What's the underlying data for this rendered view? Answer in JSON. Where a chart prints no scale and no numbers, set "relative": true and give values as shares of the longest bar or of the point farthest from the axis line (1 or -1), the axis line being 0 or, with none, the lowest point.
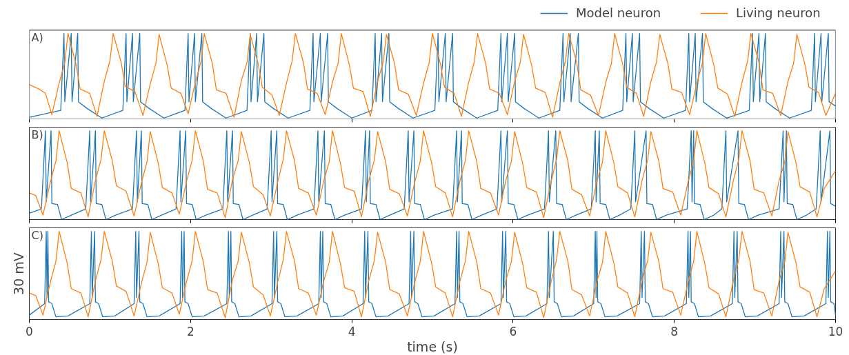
{
  "chart_data": [
    {
      "type": "line",
      "title": "A)",
      "relative": true,
      "xlim": [
        0,
        10
      ],
      "xticks": [
        0,
        2,
        4,
        6,
        8,
        10
      ],
      "tick_labels": false,
      "legend": "top right",
      "series": [
        {
          "name": "Model neuron",
          "color": "#1f77b4",
          "x": [
            0,
            0.39,
            0.43,
            0.44,
            0.52,
            0.53,
            0.6,
            0.61,
            0.72,
            0.9,
            1.16,
            1.2,
            1.21,
            1.28,
            1.29,
            1.37,
            1.38,
            1.49,
            1.67,
            1.93,
            1.97,
            1.98,
            2.05,
            2.06,
            2.14,
            2.15,
            2.26,
            2.44,
            2.7,
            2.74,
            2.75,
            2.82,
            2.83,
            2.91,
            2.92,
            3.03,
            3.21,
            3.48,
            3.52,
            3.53,
            3.61,
            3.62,
            3.7,
            3.71,
            3.82,
            4.0,
            4.25,
            4.29,
            4.3,
            4.37,
            4.38,
            4.46,
            4.47,
            4.58,
            4.76,
            5.03,
            5.07,
            5.08,
            5.16,
            5.17,
            5.25,
            5.26,
            5.37,
            5.55,
            5.81,
            5.85,
            5.86,
            5.93,
            5.94,
            6.02,
            6.03,
            6.14,
            6.32,
            6.58,
            6.62,
            6.63,
            6.71,
            6.72,
            6.81,
            6.82,
            6.93,
            7.11,
            7.36,
            7.4,
            7.41,
            7.48,
            7.49,
            7.57,
            7.58,
            7.69,
            7.87,
            8.14,
            8.18,
            8.19,
            8.26,
            8.27,
            8.35,
            8.36,
            8.47,
            8.65,
            8.93,
            8.97,
            8.98,
            9.05,
            9.06,
            9.13,
            9.14,
            9.25,
            9.43,
            9.7,
            9.74,
            9.75,
            9.82,
            9.83,
            9.91,
            9.92,
            10.0
          ],
          "values": [
            0.02,
            0.1,
            1,
            0.2,
            1,
            0.2,
            1,
            0.2,
            0.12,
            0.01,
            0.1,
            1,
            0.2,
            1,
            0.2,
            1,
            0.2,
            0.12,
            0.01,
            0.1,
            1,
            0.2,
            1,
            0.2,
            1,
            0.2,
            0.12,
            0.01,
            0.1,
            1,
            0.2,
            1,
            0.2,
            1,
            0.2,
            0.12,
            0.01,
            0.1,
            1,
            0.2,
            1,
            0.2,
            1,
            0.2,
            0.12,
            0.01,
            0.1,
            1,
            0.2,
            1,
            0.2,
            1,
            0.2,
            0.12,
            0.01,
            0.1,
            1,
            0.2,
            1,
            0.2,
            1,
            0.2,
            0.12,
            0.01,
            0.1,
            1,
            0.2,
            1,
            0.2,
            1,
            0.2,
            0.12,
            0.01,
            0.1,
            1,
            0.2,
            1,
            0.2,
            1,
            0.2,
            0.12,
            0.01,
            0.1,
            1,
            0.2,
            1,
            0.2,
            1,
            0.2,
            0.12,
            0.01,
            0.1,
            1,
            0.2,
            1,
            0.2,
            1,
            0.2,
            0.12,
            0.01,
            0.1,
            1,
            0.2,
            1,
            0.2,
            1,
            0.2,
            0.12,
            0.01,
            0.1,
            1,
            0.2,
            1,
            0.2,
            1,
            0.2,
            0.15
          ]
        },
        {
          "name": "Living neuron",
          "color": "#ff7f0e",
          "x": [
            0,
            0.12,
            0.2,
            0.28,
            0.37,
            0.44,
            0.48,
            0.58,
            0.63,
            0.75,
            0.84,
            0.93,
            1.0,
            1.04,
            1.14,
            1.19,
            1.31,
            1.41,
            1.5,
            1.57,
            1.61,
            1.71,
            1.76,
            1.88,
            1.97,
            2.06,
            2.13,
            2.17,
            2.27,
            2.32,
            2.44,
            2.54,
            2.63,
            2.7,
            2.74,
            2.84,
            2.89,
            3.01,
            3.1,
            3.19,
            3.26,
            3.3,
            3.4,
            3.45,
            3.57,
            3.67,
            3.76,
            3.83,
            3.87,
            3.97,
            4.02,
            4.14,
            4.23,
            4.32,
            4.39,
            4.43,
            4.53,
            4.58,
            4.7,
            4.8,
            4.89,
            4.96,
            5.0,
            5.1,
            5.15,
            5.27,
            5.36,
            5.45,
            5.52,
            5.56,
            5.66,
            5.71,
            5.83,
            5.93,
            6.02,
            6.09,
            6.13,
            6.23,
            6.28,
            6.4,
            6.49,
            6.58,
            6.65,
            6.69,
            6.79,
            6.84,
            6.96,
            7.06,
            7.15,
            7.22,
            7.26,
            7.36,
            7.41,
            7.53,
            7.62,
            7.71,
            7.78,
            7.82,
            7.92,
            7.97,
            8.09,
            8.19,
            8.28,
            8.35,
            8.39,
            8.49,
            8.54,
            8.66,
            8.75,
            8.84,
            8.91,
            8.95,
            9.05,
            9.1,
            9.22,
            9.32,
            9.41,
            9.48,
            9.52,
            9.62,
            9.67,
            9.79,
            9.88,
            10.0
          ],
          "values": [
            0.4,
            0.35,
            0.3,
            0.05,
            0.42,
            0.66,
            1,
            0.64,
            0.35,
            0.3,
            0.03,
            0.44,
            0.68,
            1,
            0.66,
            0.38,
            0.32,
            0.04,
            0.41,
            0.65,
            0.99,
            0.63,
            0.36,
            0.3,
            0.06,
            0.43,
            0.67,
            1,
            0.65,
            0.34,
            0.3,
            0.02,
            0.45,
            0.66,
            0.99,
            0.64,
            0.37,
            0.28,
            0.04,
            0.42,
            0.68,
            1,
            0.66,
            0.35,
            0.3,
            0.05,
            0.43,
            0.65,
            1,
            0.63,
            0.36,
            0.32,
            0.03,
            0.44,
            0.67,
            0.99,
            0.65,
            0.34,
            0.29,
            0.04,
            0.42,
            0.66,
            1,
            0.64,
            0.37,
            0.3,
            0.03,
            0.43,
            0.67,
            1,
            0.65,
            0.35,
            0.3,
            0.05,
            0.44,
            0.66,
            0.99,
            0.63,
            0.36,
            0.31,
            0.02,
            0.42,
            0.68,
            1,
            0.66,
            0.34,
            0.28,
            0.04,
            0.43,
            0.65,
            1,
            0.64,
            0.37,
            0.3,
            0.03,
            0.44,
            0.67,
            0.99,
            0.65,
            0.35,
            0.31,
            0.05,
            0.42,
            0.66,
            1,
            0.63,
            0.36,
            0.29,
            0.03,
            0.43,
            0.68,
            1,
            0.66,
            0.34,
            0.3,
            0.04,
            0.44,
            0.65,
            0.99,
            0.64,
            0.37,
            0.31,
            0.04,
            0.3
          ]
        }
      ]
    },
    {
      "type": "line",
      "title": "B)",
      "relative": true,
      "xlim": [
        0,
        10
      ],
      "xticks": [
        0,
        2,
        4,
        6,
        8,
        10
      ],
      "tick_labels": false,
      "series": [
        {
          "color": "#1f77b4",
          "x": [
            0,
            0.15,
            0.2,
            0.21,
            0.27,
            0.28,
            0.35,
            0.4,
            0.52,
            0.7,
            0.75,
            0.76,
            0.82,
            0.83,
            0.9,
            0.95,
            1.07,
            1.28,
            1.33,
            1.34,
            1.39,
            1.4,
            1.47,
            1.52,
            1.64,
            1.82,
            1.87,
            1.88,
            1.94,
            1.95,
            2.02,
            2.07,
            2.19,
            2.4,
            2.45,
            2.46,
            2.52,
            2.53,
            2.6,
            2.65,
            2.77,
            2.95,
            3.0,
            3.01,
            3.07,
            3.08,
            3.15,
            3.2,
            3.32,
            3.53,
            3.58,
            3.59,
            3.66,
            3.67,
            3.74,
            3.79,
            3.91,
            4.12,
            4.17,
            4.18,
            4.22,
            4.23,
            4.3,
            4.35,
            4.47,
            4.65,
            4.7,
            4.71,
            4.77,
            4.78,
            4.85,
            4.9,
            5.02,
            5.25,
            5.3,
            5.31,
            5.36,
            5.37,
            5.44,
            5.49,
            5.61,
            5.8,
            5.85,
            5.86,
            5.93,
            5.94,
            6.01,
            6.06,
            6.18,
            6.39,
            6.44,
            6.45,
            6.53,
            6.54,
            6.61,
            6.66,
            6.78,
            6.97,
            7.02,
            7.03,
            7.07,
            7.08,
            7.15,
            7.2,
            7.32,
            7.46,
            7.51,
            7.52,
            7.65,
            7.66,
            7.73,
            7.78,
            7.9,
            8.16,
            8.21,
            8.22,
            8.24,
            8.25,
            8.32,
            8.37,
            8.49,
            8.59,
            8.64,
            8.65,
            8.79,
            8.8,
            8.87,
            8.92,
            9.04,
            9.3,
            9.35,
            9.36,
            9.39,
            9.4,
            9.47,
            9.52,
            9.64,
            9.76,
            9.81,
            9.82,
            9.93,
            9.94,
            10.0
          ],
          "values": [
            0.07,
            0.12,
            1,
            0.2,
            1,
            0.18,
            0.17,
            0,
            0.05,
            0.12,
            1,
            0.2,
            1,
            0.18,
            0.17,
            0,
            0.05,
            0.12,
            1,
            0.2,
            1,
            0.18,
            0.17,
            0,
            0.05,
            0.12,
            1,
            0.2,
            1,
            0.18,
            0.17,
            0,
            0.05,
            0.12,
            1,
            0.2,
            1,
            0.18,
            0.17,
            0,
            0.05,
            0.12,
            1,
            0.2,
            1,
            0.18,
            0.17,
            0,
            0.05,
            0.12,
            1,
            0.2,
            1,
            0.18,
            0.17,
            0,
            0.05,
            0.12,
            1,
            0.2,
            1,
            0.18,
            0.17,
            0,
            0.05,
            0.12,
            1,
            0.2,
            1,
            0.18,
            0.17,
            0,
            0.05,
            0.12,
            1,
            0.2,
            1,
            0.18,
            0.17,
            0,
            0.05,
            0.12,
            1,
            0.2,
            1,
            0.18,
            0.17,
            0,
            0.05,
            0.12,
            1,
            0.2,
            1,
            0.18,
            0.17,
            0,
            0.05,
            0.12,
            1,
            0.2,
            1,
            0.18,
            0.17,
            0,
            0.05,
            0.12,
            1,
            0.2,
            1,
            0.18,
            0.17,
            0,
            0.05,
            0.12,
            1,
            0.2,
            1,
            0.18,
            0.17,
            0,
            0.05,
            0.12,
            1,
            0.2,
            1,
            0.18,
            0.17,
            0,
            0.05,
            0.12,
            1,
            0.2,
            1,
            0.18,
            0.17,
            0,
            0.05,
            0.12,
            1,
            0.2,
            1,
            0.18,
            0.15
          ]
        },
        {
          "color": "#ff7f0e",
          "x": [
            0,
            0.08,
            0.17,
            0.26,
            0.33,
            0.37,
            0.47,
            0.52,
            0.64,
            0.73,
            0.82,
            0.89,
            0.93,
            1.03,
            1.08,
            1.2,
            1.3,
            1.39,
            1.46,
            1.5,
            1.6,
            1.65,
            1.77,
            1.86,
            1.95,
            2.02,
            2.06,
            2.16,
            2.21,
            2.33,
            2.43,
            2.52,
            2.59,
            2.63,
            2.73,
            2.78,
            2.9,
            2.99,
            3.08,
            3.15,
            3.19,
            3.29,
            3.34,
            3.46,
            3.56,
            3.65,
            3.72,
            3.76,
            3.86,
            3.91,
            4.03,
            4.12,
            4.21,
            4.28,
            4.32,
            4.42,
            4.47,
            4.59,
            4.69,
            4.78,
            4.85,
            4.89,
            4.99,
            5.04,
            5.16,
            5.25,
            5.34,
            5.41,
            5.45,
            5.55,
            5.6,
            5.72,
            5.82,
            5.91,
            5.98,
            6.02,
            6.12,
            6.17,
            6.29,
            6.38,
            6.47,
            6.54,
            6.58,
            6.68,
            6.73,
            6.85,
            6.95,
            7.04,
            7.11,
            7.15,
            7.25,
            7.3,
            7.42,
            7.51,
            7.6,
            7.67,
            7.71,
            7.81,
            7.86,
            7.98,
            8.08,
            8.17,
            8.24,
            8.28,
            8.38,
            8.43,
            8.55,
            8.64,
            8.73,
            8.8,
            8.84,
            8.94,
            8.99,
            9.11,
            9.21,
            9.3,
            9.37,
            9.41,
            9.51,
            9.56,
            9.68,
            9.77,
            9.86,
            10.0
          ],
          "values": [
            0.3,
            0.27,
            0.05,
            0.42,
            0.66,
            1,
            0.64,
            0.35,
            0.3,
            0.03,
            0.44,
            0.68,
            1,
            0.66,
            0.38,
            0.32,
            0.04,
            0.41,
            0.65,
            0.99,
            0.63,
            0.36,
            0.3,
            0.06,
            0.43,
            0.67,
            1,
            0.65,
            0.34,
            0.3,
            0.02,
            0.45,
            0.66,
            0.99,
            0.64,
            0.37,
            0.28,
            0.04,
            0.42,
            0.68,
            1,
            0.66,
            0.35,
            0.3,
            0.05,
            0.43,
            0.65,
            1,
            0.63,
            0.36,
            0.32,
            0.03,
            0.44,
            0.67,
            0.99,
            0.65,
            0.34,
            0.29,
            0.04,
            0.42,
            0.66,
            1,
            0.64,
            0.37,
            0.3,
            0.03,
            0.43,
            0.67,
            1,
            0.65,
            0.35,
            0.3,
            0.05,
            0.44,
            0.66,
            0.99,
            0.63,
            0.36,
            0.31,
            0.02,
            0.42,
            0.68,
            1,
            0.66,
            0.34,
            0.28,
            0.04,
            0.43,
            0.65,
            1,
            0.64,
            0.37,
            0.3,
            0.03,
            0.44,
            0.67,
            0.99,
            0.65,
            0.35,
            0.31,
            0.05,
            0.42,
            0.66,
            1,
            0.63,
            0.36,
            0.29,
            0.03,
            0.43,
            0.68,
            1,
            0.66,
            0.34,
            0.3,
            0.04,
            0.44,
            0.65,
            0.99,
            0.64,
            0.37,
            0.31,
            0.03,
            0.35,
            0.55
          ]
        }
      ]
    },
    {
      "type": "line",
      "title": "C)",
      "xlabel": "time (s)",
      "ylabel": "30 mV",
      "relative": true,
      "xlim": [
        0,
        10
      ],
      "xticks": [
        0,
        2,
        4,
        6,
        8,
        10
      ],
      "tick_labels": "x",
      "series": [
        {
          "color": "#1f77b4",
          "x": [
            0,
            0.19,
            0.21,
            0.22,
            0.23,
            0.24,
            0.28,
            0.33,
            0.48,
            0.75,
            0.77,
            0.78,
            0.81,
            0.82,
            0.86,
            0.91,
            1.06,
            1.3,
            1.32,
            1.33,
            1.36,
            1.37,
            1.41,
            1.46,
            1.61,
            1.87,
            1.89,
            1.9,
            1.92,
            1.93,
            1.97,
            2.02,
            2.17,
            2.45,
            2.47,
            2.48,
            2.5,
            2.51,
            2.55,
            2.6,
            2.75,
            3.01,
            3.03,
            3.04,
            3.07,
            3.08,
            3.12,
            3.17,
            3.32,
            3.59,
            3.61,
            3.62,
            3.64,
            3.65,
            3.69,
            3.74,
            3.89,
            4.14,
            4.16,
            4.17,
            4.2,
            4.21,
            4.25,
            4.3,
            4.45,
            4.71,
            4.73,
            4.74,
            4.77,
            4.78,
            4.82,
            4.87,
            5.02,
            5.28,
            5.3,
            5.31,
            5.33,
            5.34,
            5.38,
            5.43,
            5.58,
            5.85,
            5.87,
            5.88,
            5.91,
            5.92,
            5.96,
            6.01,
            6.16,
            6.42,
            6.44,
            6.45,
            6.5,
            6.51,
            6.55,
            6.6,
            6.75,
            7.0,
            7.02,
            7.03,
            7.04,
            7.05,
            7.09,
            7.14,
            7.29,
            7.57,
            7.59,
            7.6,
            7.63,
            7.64,
            7.68,
            7.73,
            7.88,
            8.15,
            8.17,
            8.18,
            8.2,
            8.21,
            8.25,
            8.3,
            8.45,
            8.72,
            8.74,
            8.75,
            8.78,
            8.79,
            8.83,
            8.88,
            9.03,
            9.3,
            9.32,
            9.33,
            9.36,
            9.37,
            9.41,
            9.46,
            9.61,
            9.88,
            9.9,
            9.91,
            9.93,
            9.94,
            9.98,
            10.0
          ],
          "values": [
            0.05,
            0.18,
            1,
            0.25,
            1,
            0.2,
            0.18,
            0.03,
            0.04,
            0.18,
            1,
            0.25,
            1,
            0.2,
            0.18,
            0.03,
            0.04,
            0.18,
            1,
            0.25,
            1,
            0.2,
            0.18,
            0.03,
            0.04,
            0.18,
            1,
            0.25,
            1,
            0.2,
            0.18,
            0.03,
            0.04,
            0.18,
            1,
            0.25,
            1,
            0.2,
            0.18,
            0.03,
            0.04,
            0.18,
            1,
            0.25,
            1,
            0.2,
            0.18,
            0.03,
            0.04,
            0.18,
            1,
            0.25,
            1,
            0.2,
            0.18,
            0.03,
            0.04,
            0.18,
            1,
            0.25,
            1,
            0.2,
            0.18,
            0.03,
            0.04,
            0.18,
            1,
            0.25,
            1,
            0.2,
            0.18,
            0.03,
            0.04,
            0.18,
            1,
            0.25,
            1,
            0.2,
            0.18,
            0.03,
            0.04,
            0.18,
            1,
            0.25,
            1,
            0.2,
            0.18,
            0.03,
            0.04,
            0.18,
            1,
            0.25,
            1,
            0.2,
            0.18,
            0.03,
            0.04,
            0.18,
            1,
            0.25,
            1,
            0.2,
            0.18,
            0.03,
            0.04,
            0.18,
            1,
            0.25,
            1,
            0.2,
            0.18,
            0.03,
            0.04,
            0.18,
            1,
            0.25,
            1,
            0.2,
            0.18,
            0.03,
            0.04,
            0.18,
            1,
            0.25,
            1,
            0.2,
            0.18,
            0.03,
            0.04,
            0.18,
            1,
            0.25,
            1,
            0.2,
            0.18,
            0.03,
            0.04,
            0.18,
            1,
            0.25,
            1,
            0.2,
            0.18,
            0.05
          ]
        },
        {
          "color": "#ff7f0e",
          "x": [
            0,
            0.08,
            0.17,
            0.26,
            0.33,
            0.37,
            0.47,
            0.52,
            0.64,
            0.73,
            0.82,
            0.89,
            0.93,
            1.03,
            1.08,
            1.2,
            1.3,
            1.39,
            1.46,
            1.5,
            1.6,
            1.65,
            1.77,
            1.86,
            1.95,
            2.02,
            2.06,
            2.16,
            2.21,
            2.33,
            2.43,
            2.52,
            2.59,
            2.63,
            2.73,
            2.78,
            2.9,
            2.99,
            3.08,
            3.15,
            3.19,
            3.29,
            3.34,
            3.46,
            3.56,
            3.65,
            3.72,
            3.76,
            3.86,
            3.91,
            4.03,
            4.12,
            4.21,
            4.28,
            4.32,
            4.42,
            4.47,
            4.59,
            4.69,
            4.78,
            4.85,
            4.89,
            4.99,
            5.04,
            5.16,
            5.25,
            5.34,
            5.41,
            5.45,
            5.55,
            5.6,
            5.72,
            5.82,
            5.91,
            5.98,
            6.02,
            6.12,
            6.17,
            6.29,
            6.38,
            6.47,
            6.54,
            6.58,
            6.68,
            6.73,
            6.85,
            6.95,
            7.04,
            7.11,
            7.15,
            7.25,
            7.3,
            7.42,
            7.51,
            7.6,
            7.67,
            7.71,
            7.81,
            7.86,
            7.98,
            8.08,
            8.17,
            8.24,
            8.28,
            8.38,
            8.43,
            8.55,
            8.64,
            8.73,
            8.8,
            8.84,
            8.94,
            8.99,
            9.11,
            9.21,
            9.3,
            9.37,
            9.41,
            9.51,
            9.56,
            9.68,
            9.77,
            9.86,
            10.0
          ],
          "values": [
            0.3,
            0.27,
            0.05,
            0.42,
            0.66,
            1,
            0.64,
            0.35,
            0.3,
            0.03,
            0.44,
            0.68,
            1,
            0.66,
            0.38,
            0.32,
            0.04,
            0.41,
            0.65,
            0.99,
            0.63,
            0.36,
            0.3,
            0.06,
            0.43,
            0.67,
            1,
            0.65,
            0.34,
            0.3,
            0.02,
            0.45,
            0.66,
            0.99,
            0.64,
            0.37,
            0.28,
            0.04,
            0.42,
            0.68,
            1,
            0.66,
            0.35,
            0.3,
            0.05,
            0.43,
            0.65,
            1,
            0.63,
            0.36,
            0.32,
            0.03,
            0.44,
            0.67,
            0.99,
            0.65,
            0.34,
            0.29,
            0.04,
            0.42,
            0.66,
            1,
            0.64,
            0.37,
            0.3,
            0.03,
            0.43,
            0.67,
            1,
            0.65,
            0.35,
            0.3,
            0.05,
            0.44,
            0.66,
            0.99,
            0.63,
            0.36,
            0.31,
            0.02,
            0.42,
            0.68,
            1,
            0.66,
            0.34,
            0.28,
            0.04,
            0.43,
            0.65,
            1,
            0.64,
            0.37,
            0.3,
            0.03,
            0.44,
            0.67,
            0.99,
            0.65,
            0.35,
            0.31,
            0.05,
            0.42,
            0.66,
            1,
            0.63,
            0.36,
            0.29,
            0.03,
            0.43,
            0.68,
            1,
            0.66,
            0.34,
            0.3,
            0.04,
            0.44,
            0.65,
            0.99,
            0.64,
            0.37,
            0.31,
            0.03,
            0.35,
            0.55
          ]
        }
      ]
    }
  ]
}
